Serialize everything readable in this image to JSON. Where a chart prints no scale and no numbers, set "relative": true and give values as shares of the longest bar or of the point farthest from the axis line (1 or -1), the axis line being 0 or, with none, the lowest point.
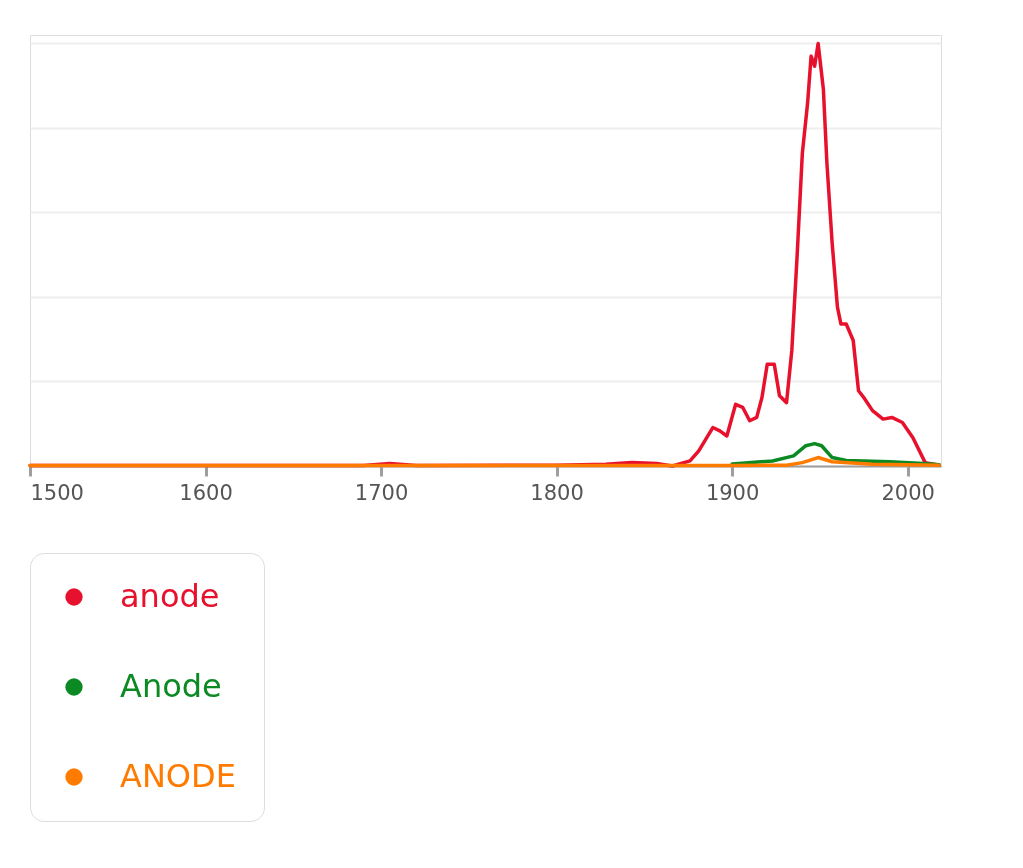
{
  "chart_data": {
    "type": "line",
    "relative": true,
    "xlim": [
      1500,
      2019
    ],
    "xticks": [
      1500,
      1600,
      1700,
      1800,
      1900,
      2000
    ],
    "grid": "y",
    "legend": "bottom",
    "marker": "none",
    "line_style": "solid",
    "series": [
      {
        "name": "anode",
        "color": "#e8112d",
        "x": [
          1500,
          1600,
          1690,
          1705,
          1720,
          1800,
          1828,
          1843,
          1857,
          1866,
          1876,
          1881,
          1889,
          1893,
          1897,
          1902,
          1906,
          1910,
          1914,
          1917,
          1920,
          1924,
          1927,
          1931,
          1934,
          1937,
          1940,
          1943,
          1945,
          1947,
          1949,
          1952,
          1954,
          1957,
          1960,
          1962,
          1965,
          1969,
          1972,
          1975,
          1980,
          1986,
          1991,
          1997,
          2003,
          2010,
          2018
        ],
        "values": [
          0.001,
          0.001,
          0.001,
          0.006,
          0.001,
          0.002,
          0.004,
          0.008,
          0.006,
          0,
          0.012,
          0.036,
          0.091,
          0.083,
          0.071,
          0.146,
          0.139,
          0.107,
          0.115,
          0.162,
          0.241,
          0.241,
          0.166,
          0.15,
          0.273,
          0.495,
          0.74,
          0.859,
          0.97,
          0.946,
          1,
          0.891,
          0.717,
          0.527,
          0.376,
          0.336,
          0.336,
          0.297,
          0.178,
          0.162,
          0.131,
          0.111,
          0.115,
          0.103,
          0.067,
          0.008,
          0.002
        ]
      },
      {
        "name": "Anode",
        "color": "#0b8a23",
        "x": [
          1900,
          1923,
          1935,
          1942,
          1947,
          1951,
          1957,
          1965,
          1990,
          2009,
          2018
        ],
        "values": [
          0.005,
          0.012,
          0.024,
          0.048,
          0.053,
          0.048,
          0.02,
          0.013,
          0.01,
          0.006,
          0.003
        ]
      },
      {
        "name": "ANODE",
        "color": "#ff7b00",
        "x": [
          1500,
          1700,
          1900,
          1931,
          1940,
          1949,
          1957,
          1980,
          2018
        ],
        "values": [
          0.001,
          0.001,
          0.001,
          0.002,
          0.008,
          0.02,
          0.01,
          0.004,
          0.002
        ]
      }
    ]
  }
}
